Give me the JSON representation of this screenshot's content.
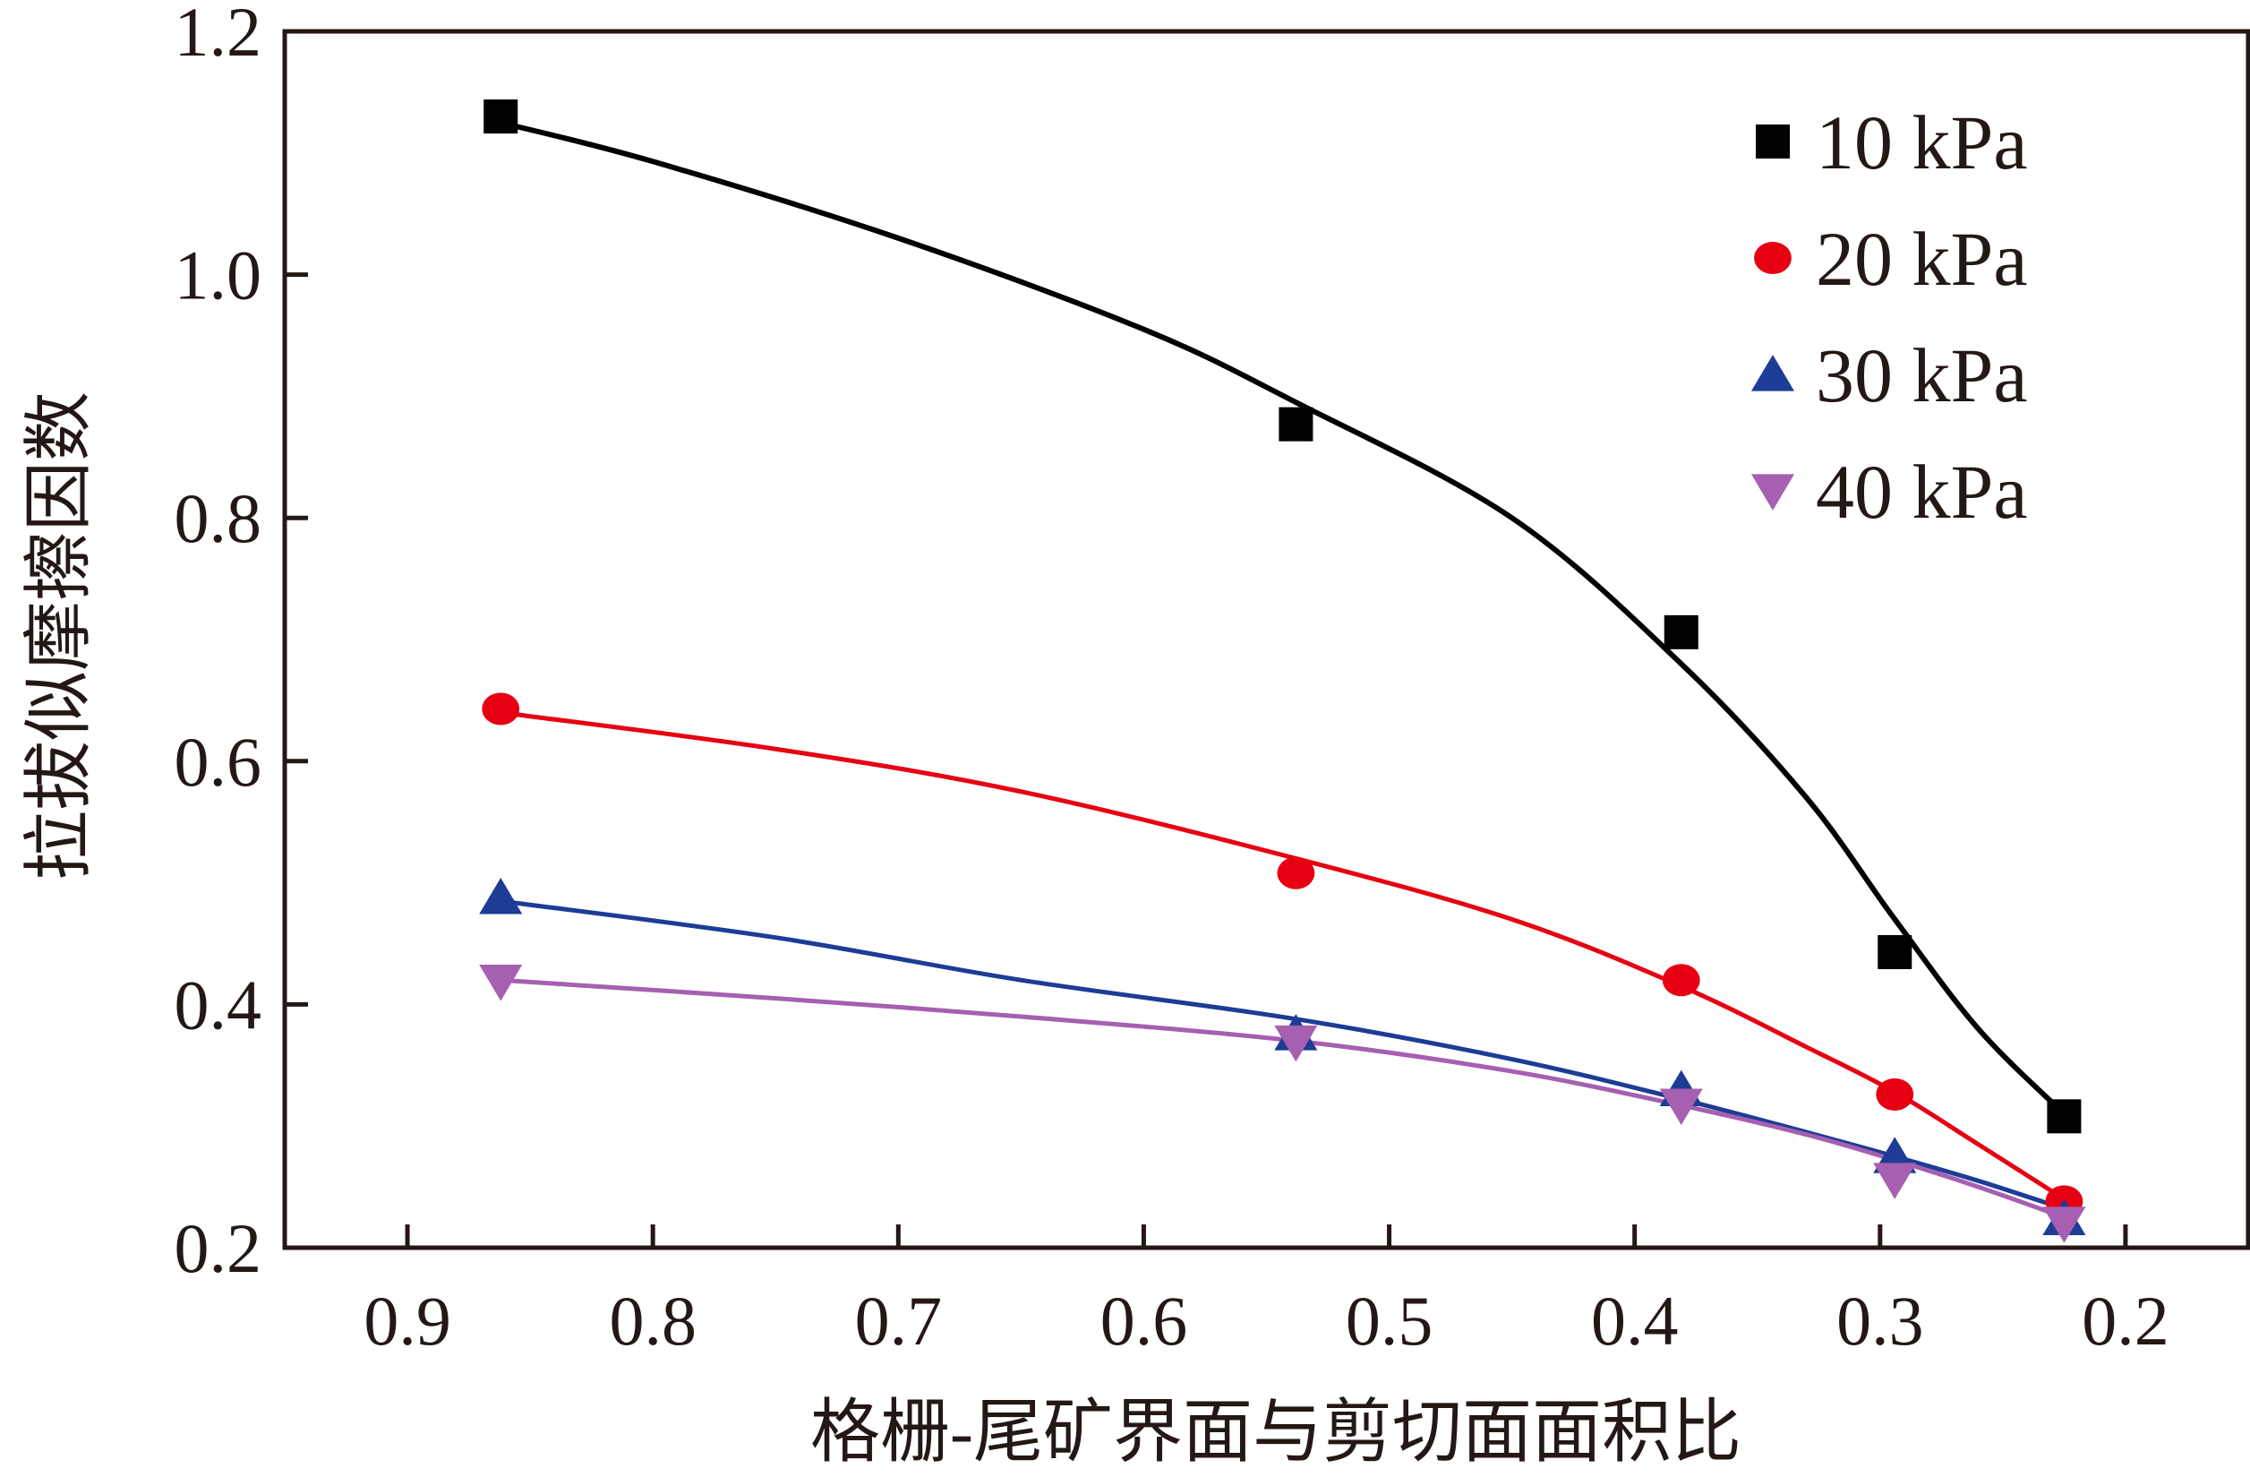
{
  "chart_data": {
    "type": "scatter",
    "title": "",
    "xlabel": "格栅-尾矿界面与剪切面面积比",
    "ylabel": "拉拔似摩擦因数",
    "xlim": [
      0.95,
      0.15
    ],
    "ylim": [
      0.2,
      1.2
    ],
    "x_reversed": true,
    "grid": false,
    "legend_position": "top-right",
    "x_ticks": [
      "0.9",
      "0.8",
      "0.7",
      "0.6",
      "0.5",
      "0.4",
      "0.3",
      "0.2"
    ],
    "y_ticks": [
      "0.2",
      "0.4",
      "0.6",
      "0.8",
      "1.0",
      "1.2"
    ],
    "series": [
      {
        "name": "10 kPa",
        "marker": "square",
        "color": "#000000",
        "line_color": "#000000",
        "x": [
          0.862,
          0.538,
          0.381,
          0.294,
          0.225
        ],
        "y": [
          1.13,
          0.877,
          0.706,
          0.443,
          0.308
        ],
        "fit": [
          [
            0.862,
            1.125
          ],
          [
            0.8,
            1.093
          ],
          [
            0.7,
            1.03
          ],
          [
            0.6,
            0.955
          ],
          [
            0.538,
            0.895
          ],
          [
            0.45,
            0.8
          ],
          [
            0.381,
            0.68
          ],
          [
            0.33,
            0.57
          ],
          [
            0.294,
            0.47
          ],
          [
            0.26,
            0.38
          ],
          [
            0.225,
            0.31
          ]
        ]
      },
      {
        "name": "20 kPa",
        "marker": "circle",
        "color": "#e60012",
        "line_color": "#e60012",
        "x": [
          0.862,
          0.538,
          0.381,
          0.294,
          0.225
        ],
        "y": [
          0.643,
          0.508,
          0.42,
          0.326,
          0.238
        ],
        "fit": [
          [
            0.862,
            0.64
          ],
          [
            0.75,
            0.61
          ],
          [
            0.65,
            0.575
          ],
          [
            0.538,
            0.52
          ],
          [
            0.45,
            0.47
          ],
          [
            0.381,
            0.415
          ],
          [
            0.33,
            0.365
          ],
          [
            0.294,
            0.328
          ],
          [
            0.26,
            0.285
          ],
          [
            0.225,
            0.24
          ]
        ]
      },
      {
        "name": "30 kPa",
        "marker": "triangle-up",
        "color": "#1d3c96",
        "line_color": "#1d3c96",
        "x": [
          0.862,
          0.538,
          0.381,
          0.294,
          0.225
        ],
        "y": [
          0.488,
          0.376,
          0.33,
          0.275,
          0.224
        ],
        "fit": [
          [
            0.862,
            0.485
          ],
          [
            0.75,
            0.455
          ],
          [
            0.65,
            0.42
          ],
          [
            0.538,
            0.388
          ],
          [
            0.45,
            0.355
          ],
          [
            0.381,
            0.322
          ],
          [
            0.33,
            0.295
          ],
          [
            0.294,
            0.275
          ],
          [
            0.26,
            0.255
          ],
          [
            0.225,
            0.232
          ]
        ]
      },
      {
        "name": "40 kPa",
        "marker": "triangle-down",
        "color": "#a65fb1",
        "line_color": "#a65fb1",
        "x": [
          0.862,
          0.538,
          0.381,
          0.294,
          0.225
        ],
        "y": [
          0.419,
          0.369,
          0.317,
          0.256,
          0.22
        ],
        "fit": [
          [
            0.862,
            0.42
          ],
          [
            0.75,
            0.405
          ],
          [
            0.65,
            0.39
          ],
          [
            0.538,
            0.37
          ],
          [
            0.45,
            0.345
          ],
          [
            0.381,
            0.317
          ],
          [
            0.33,
            0.293
          ],
          [
            0.294,
            0.272
          ],
          [
            0.26,
            0.25
          ],
          [
            0.225,
            0.225
          ]
        ]
      }
    ]
  }
}
